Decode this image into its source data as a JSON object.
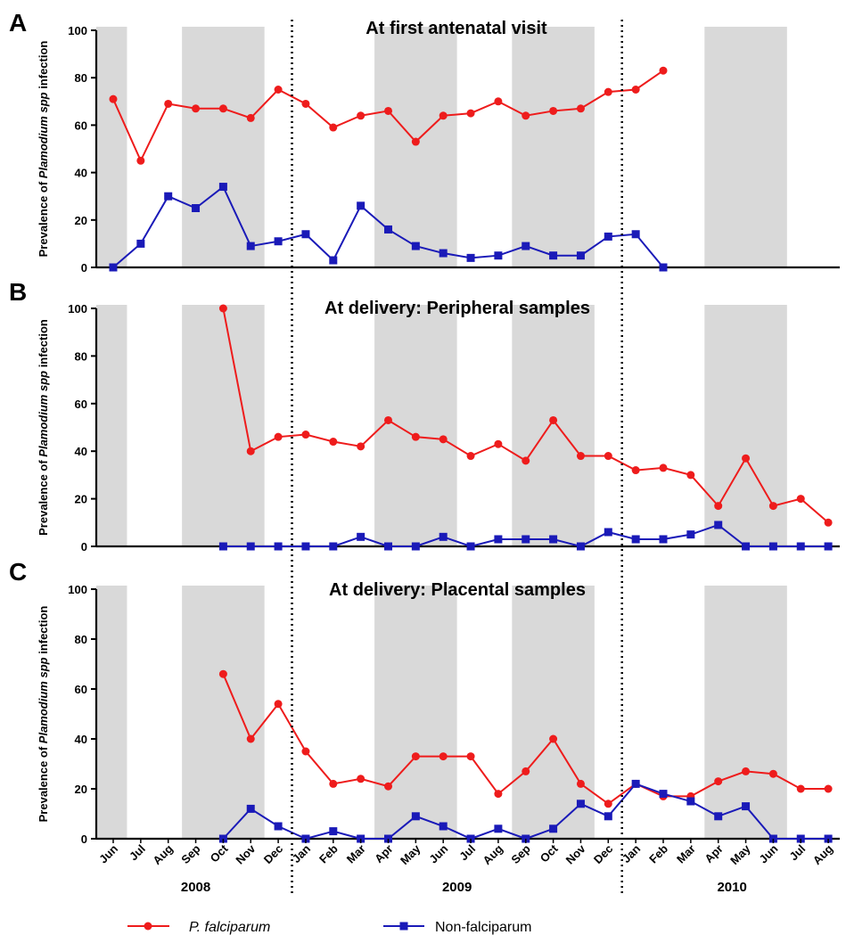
{
  "chart_data": {
    "type": "line",
    "months": [
      "Jun",
      "Jul",
      "Aug",
      "Sep",
      "Oct",
      "Nov",
      "Dec",
      "Jan",
      "Feb",
      "Mar",
      "Apr",
      "May",
      "Jun",
      "Jul",
      "Aug",
      "Sep",
      "Oct",
      "Nov",
      "Dec",
      "Jan",
      "Feb",
      "Mar",
      "Apr",
      "May",
      "Jun",
      "Jul",
      "Aug"
    ],
    "years": [
      {
        "label": "2008",
        "from": 0,
        "to": 6
      },
      {
        "label": "2009",
        "from": 7,
        "to": 18
      },
      {
        "label": "2010",
        "from": 19,
        "to": 26
      }
    ],
    "ylim": [
      0,
      100
    ],
    "yticks": [
      0,
      20,
      40,
      60,
      80,
      100
    ],
    "ylabel_prefix": "Prevalence of ",
    "ylabel_italic": "Plamodium spp",
    "ylabel_suffix": " infection",
    "shaded_month_ranges": [
      [
        0,
        0
      ],
      [
        3,
        5
      ],
      [
        10,
        12
      ],
      [
        15,
        17
      ],
      [
        22,
        24
      ]
    ],
    "year_dividers_after": [
      6,
      18
    ],
    "colors": {
      "falciparum": "#ee1c1c",
      "non_falciparum": "#1a1ab8",
      "shade": "#d9d9d9"
    },
    "legend": {
      "falciparum_italic": "P. falciparum",
      "non_falciparum": "Non-falciparum"
    },
    "panels": [
      {
        "letter": "A",
        "title": "At first antenatal visit",
        "series": [
          {
            "name": "P. falciparum",
            "values": [
              71,
              45,
              69,
              67,
              67,
              63,
              75,
              69,
              59,
              64,
              66,
              53,
              64,
              65,
              70,
              64,
              66,
              67,
              74,
              75,
              83,
              null,
              null,
              null,
              null,
              null,
              null
            ]
          },
          {
            "name": "Non-falciparum",
            "values": [
              0,
              10,
              30,
              25,
              34,
              9,
              11,
              14,
              3,
              26,
              16,
              9,
              6,
              4,
              5,
              9,
              5,
              5,
              13,
              14,
              0,
              null,
              null,
              null,
              null,
              null,
              null
            ]
          }
        ]
      },
      {
        "letter": "B",
        "title": "At delivery: Peripheral samples",
        "series": [
          {
            "name": "P. falciparum",
            "values": [
              null,
              null,
              null,
              null,
              100,
              40,
              46,
              47,
              44,
              42,
              53,
              46,
              45,
              38,
              43,
              36,
              53,
              38,
              38,
              32,
              33,
              30,
              17,
              37,
              17,
              20,
              10
            ]
          },
          {
            "name": "Non-falciparum",
            "values": [
              null,
              null,
              null,
              null,
              0,
              0,
              0,
              0,
              0,
              4,
              0,
              0,
              4,
              0,
              3,
              3,
              3,
              0,
              6,
              3,
              3,
              5,
              9,
              0,
              0,
              0,
              0
            ]
          }
        ]
      },
      {
        "letter": "C",
        "title": "At delivery: Placental samples",
        "series": [
          {
            "name": "P. falciparum",
            "values": [
              null,
              null,
              null,
              null,
              66,
              40,
              54,
              35,
              22,
              24,
              21,
              33,
              33,
              33,
              18,
              27,
              40,
              22,
              14,
              22,
              17,
              17,
              23,
              27,
              26,
              20,
              20
            ]
          },
          {
            "name": "Non-falciparum",
            "values": [
              null,
              null,
              null,
              null,
              0,
              12,
              5,
              0,
              3,
              0,
              0,
              9,
              5,
              0,
              4,
              0,
              4,
              14,
              9,
              22,
              18,
              15,
              9,
              13,
              0,
              0,
              0
            ]
          }
        ]
      }
    ]
  }
}
